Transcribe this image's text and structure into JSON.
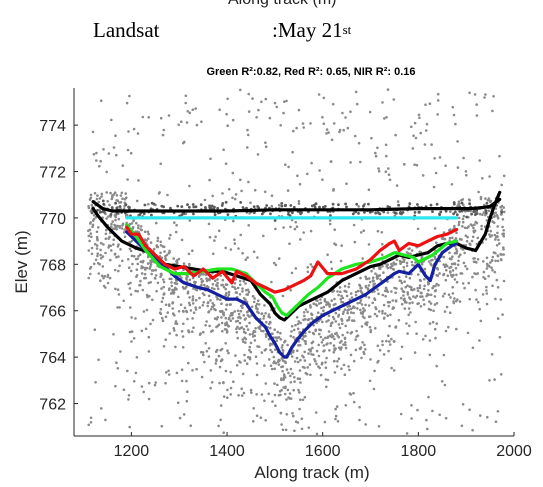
{
  "header": {
    "cut_off_label": "Along track (m)",
    "title_left": "Landsat",
    "title_right_prefix": ":May 21",
    "title_right_suffix": "st"
  },
  "chart_data": {
    "type": "line",
    "title": "Green R²:0.82, Red R²: 0.65, NIR R²: 0.16",
    "xlabel": "Along track (m)",
    "ylabel": "Elev (m)",
    "xlim": [
      1080,
      2000
    ],
    "ylim": [
      760.6,
      775.6
    ],
    "xticks": [
      1200,
      1400,
      1600,
      1800,
      2000
    ],
    "yticks": [
      762,
      764,
      766,
      768,
      770,
      772,
      774
    ],
    "grid": false,
    "legend": "none",
    "colors": {
      "photons": "#8a8a8a",
      "surface": "#000000",
      "ground": "#000000",
      "cyan": "#2ce8ee",
      "blue": "#1420a0",
      "green": "#1ee61e",
      "red": "#ee1111"
    },
    "series": [
      {
        "color": "#000000",
        "x": [
          1120,
          1140,
          1160,
          1200,
          1300,
          1400,
          1500,
          1600,
          1700,
          1800,
          1880,
          1910,
          1935,
          1950,
          1970
        ],
        "y": [
          770.7,
          770.4,
          770.3,
          770.3,
          770.3,
          770.3,
          770.35,
          770.35,
          770.35,
          770.4,
          770.4,
          770.4,
          770.45,
          770.5,
          770.8
        ]
      },
      {
        "color": "#000000",
        "x": [
          1120,
          1130,
          1150,
          1180,
          1210,
          1240,
          1270,
          1300,
          1330,
          1360,
          1390,
          1420,
          1450,
          1470,
          1490,
          1500,
          1510,
          1520,
          1530,
          1540,
          1550,
          1570,
          1590,
          1610,
          1640,
          1670,
          1700,
          1720,
          1740,
          1760,
          1780,
          1800,
          1820,
          1840,
          1860,
          1880,
          1900,
          1920,
          1940,
          1950,
          1960,
          1970
        ],
        "y": [
          770.4,
          770.1,
          769.6,
          769.0,
          768.7,
          768.5,
          768.0,
          767.9,
          767.8,
          767.7,
          767.7,
          767.5,
          767.3,
          766.7,
          766.3,
          765.9,
          765.7,
          765.6,
          765.8,
          766.0,
          766.2,
          766.4,
          766.6,
          766.8,
          767.3,
          767.6,
          767.9,
          768.0,
          768.2,
          768.4,
          768.3,
          768.4,
          768.5,
          768.8,
          768.9,
          768.9,
          768.7,
          768.6,
          769.3,
          770.0,
          770.6,
          771.1
        ]
      },
      {
        "color": "#2ce8ee",
        "x": [
          1190,
          1880
        ],
        "y": [
          770.0,
          770.0
        ]
      },
      {
        "color": "#1420a0",
        "x": [
          1190,
          1210,
          1230,
          1250,
          1270,
          1290,
          1310,
          1340,
          1360,
          1380,
          1400,
          1420,
          1440,
          1460,
          1480,
          1490,
          1500,
          1510,
          1520,
          1525,
          1535,
          1545,
          1560,
          1580,
          1600,
          1620,
          1640,
          1660,
          1690,
          1710,
          1730,
          1750,
          1760,
          1780,
          1790,
          1800,
          1815,
          1825,
          1835,
          1850,
          1870,
          1880
        ],
        "y": [
          769.4,
          769.0,
          768.6,
          768.3,
          767.9,
          767.5,
          767.2,
          767.0,
          766.9,
          766.7,
          766.5,
          766.5,
          766.3,
          765.7,
          765.3,
          764.9,
          764.6,
          764.2,
          764.0,
          764.0,
          764.4,
          764.7,
          765.1,
          765.5,
          765.8,
          766.0,
          766.2,
          766.4,
          766.7,
          767.0,
          767.3,
          767.6,
          767.7,
          767.6,
          767.8,
          768.0,
          767.5,
          767.3,
          768.0,
          768.5,
          768.8,
          768.9
        ]
      },
      {
        "color": "#1ee61e",
        "x": [
          1190,
          1210,
          1230,
          1260,
          1290,
          1320,
          1350,
          1380,
          1410,
          1440,
          1460,
          1480,
          1495,
          1505,
          1515,
          1525,
          1535,
          1550,
          1570,
          1590,
          1610,
          1640,
          1670,
          1700,
          1730,
          1750,
          1770,
          1790,
          1800,
          1830,
          1860,
          1880
        ],
        "y": [
          769.7,
          769.2,
          768.6,
          767.9,
          767.6,
          767.6,
          767.7,
          767.8,
          767.8,
          767.6,
          767.2,
          766.8,
          766.6,
          766.2,
          765.9,
          765.8,
          766.0,
          766.3,
          766.7,
          767.0,
          767.4,
          767.8,
          768.0,
          768.1,
          768.3,
          768.5,
          768.4,
          768.3,
          768.1,
          768.4,
          768.9,
          769.0
        ]
      },
      {
        "color": "#ee1111",
        "x": [
          1190,
          1200,
          1215,
          1230,
          1250,
          1270,
          1290,
          1310,
          1330,
          1350,
          1370,
          1390,
          1410,
          1420,
          1440,
          1460,
          1480,
          1500,
          1520,
          1540,
          1560,
          1575,
          1590,
          1610,
          1640,
          1670,
          1700,
          1720,
          1740,
          1750,
          1760,
          1780,
          1800,
          1820,
          1840,
          1860,
          1880
        ],
        "y": [
          769.6,
          769.3,
          769.3,
          768.8,
          768.4,
          768.0,
          767.8,
          767.9,
          767.5,
          767.8,
          767.4,
          767.7,
          767.2,
          767.7,
          767.5,
          767.2,
          767.0,
          766.8,
          766.9,
          767.1,
          767.3,
          767.5,
          768.1,
          767.6,
          767.6,
          767.8,
          768.2,
          768.6,
          768.9,
          769.0,
          768.6,
          768.9,
          768.8,
          769.0,
          769.2,
          769.3,
          769.5
        ]
      }
    ]
  }
}
